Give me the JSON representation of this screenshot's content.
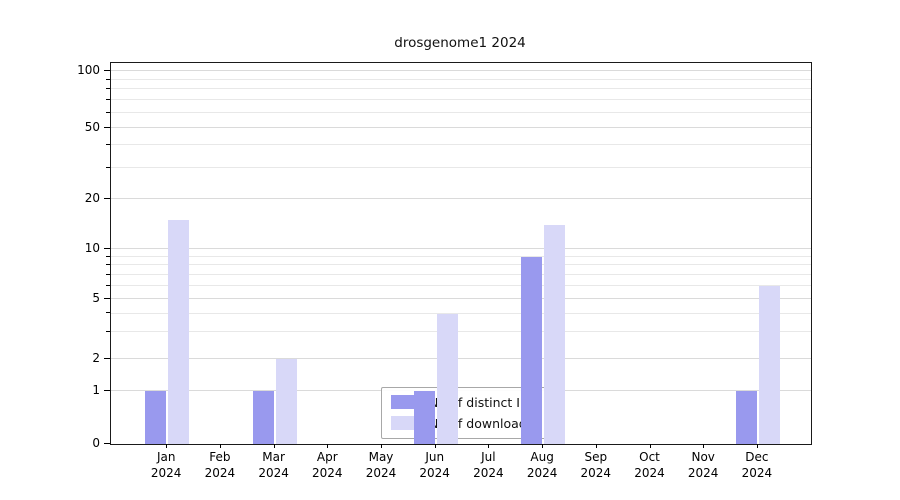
{
  "title": "drosgenome1 2024",
  "chart_data": {
    "type": "bar",
    "title": "drosgenome1 2024",
    "categories": [
      "Jan 2024",
      "Feb 2024",
      "Mar 2024",
      "Apr 2024",
      "May 2024",
      "Jun 2024",
      "Jul 2024",
      "Aug 2024",
      "Sep 2024",
      "Oct 2024",
      "Nov 2024",
      "Dec 2024"
    ],
    "series": [
      {
        "name": "Nb of distinct IPs",
        "color": "#9999ee",
        "values": [
          1,
          0,
          1,
          0,
          0,
          1,
          0,
          9,
          0,
          0,
          0,
          1
        ]
      },
      {
        "name": "Nb of downloads",
        "color": "#d8d8f8",
        "values": [
          15,
          0,
          2,
          0,
          0,
          4,
          0,
          14,
          0,
          0,
          0,
          6
        ]
      }
    ],
    "y_ticks": [
      0,
      1,
      2,
      5,
      10,
      20,
      50,
      100
    ],
    "ylim": [
      0,
      110
    ],
    "y_scale": "log-like above 1, linear 0-1",
    "grid": true,
    "legend_position": "lower center inside plot",
    "xlabel": "",
    "ylabel": ""
  }
}
